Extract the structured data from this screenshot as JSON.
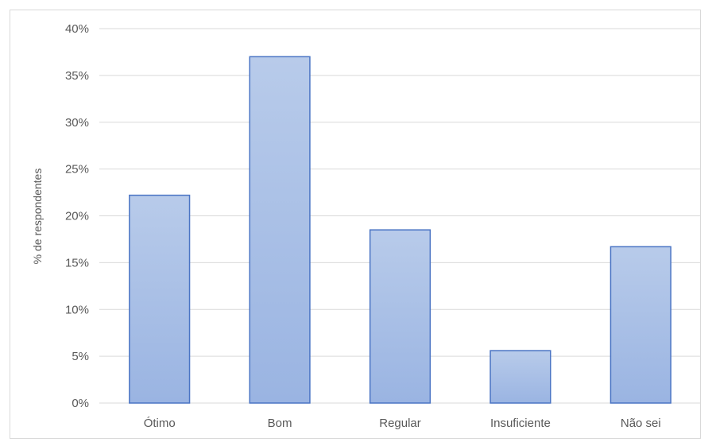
{
  "chart_data": {
    "type": "bar",
    "title": "",
    "xlabel": "",
    "ylabel": "% de respondentes",
    "categories": [
      "Ótimo",
      "Bom",
      "Regular",
      "Insuficiente",
      "Não sei"
    ],
    "values": [
      22.2,
      37.0,
      18.5,
      5.6,
      16.7
    ],
    "ylim": [
      0,
      40
    ],
    "yticks": [
      0,
      5,
      10,
      15,
      20,
      25,
      30,
      35,
      40
    ],
    "ytick_format": "%",
    "grid": true,
    "legend": "none",
    "bar_fill_top": "#b8cbea",
    "bar_fill_bottom": "#9ab4e2",
    "bar_stroke": "#4a74c4",
    "grid_color": "#d9d9d9"
  }
}
